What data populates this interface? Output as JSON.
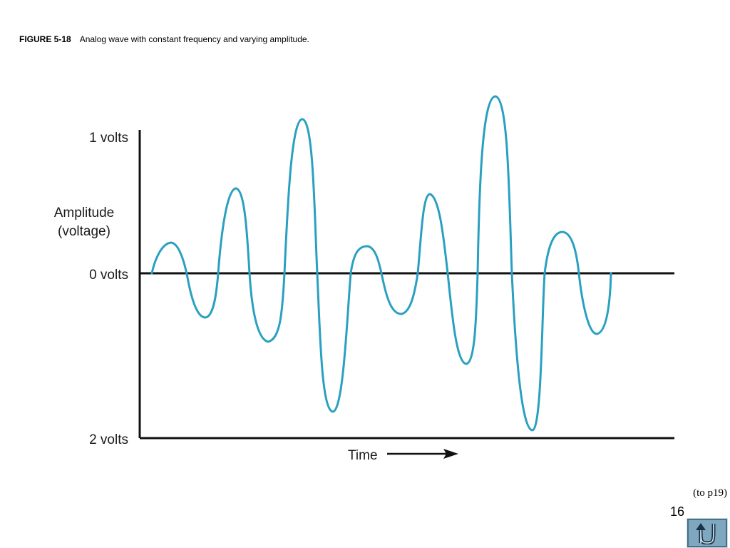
{
  "caption": {
    "figure_number": "FIGURE 5-18",
    "text": "Analog wave with constant frequency and varying amplitude."
  },
  "diagram": {
    "top_label": "1 volts",
    "y_axis_label_line1": "Amplitude",
    "y_axis_label_line2": "(voltage)",
    "zero_label": "0 volts",
    "bottom_label": "2 volts",
    "x_axis_label": "Time",
    "wave_color": "#2aa0c0",
    "axis_color": "#111111"
  },
  "footer": {
    "link_text": "(to p19)",
    "page_number": "16",
    "return_button_icon": "u-turn-icon",
    "return_button_color": "#7fa7bf"
  }
}
